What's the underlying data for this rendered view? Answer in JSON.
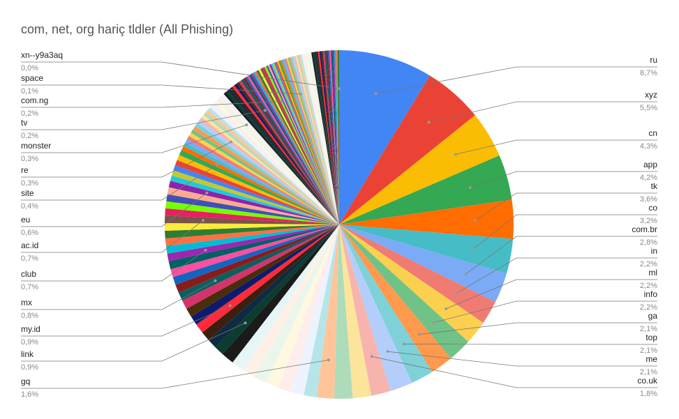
{
  "chart_data": {
    "type": "pie",
    "title": "com, net, org hariç tldler (All Phishing)",
    "categories": [
      "ru",
      "xyz",
      "cn",
      "app",
      "tk",
      "co",
      "com.br",
      "in",
      "ml",
      "info",
      "ga",
      "top",
      "me",
      "co.uk",
      null,
      null,
      "gq",
      null,
      null,
      null,
      null,
      null,
      null,
      null,
      null,
      "link",
      null,
      null,
      "my.id",
      null,
      null,
      null,
      "mx",
      null,
      null,
      null,
      null,
      "club",
      null,
      null,
      null,
      null,
      "ac.id",
      null,
      null,
      null,
      null,
      "eu",
      null,
      null,
      null,
      null,
      null,
      null,
      "site",
      null,
      null,
      null,
      null,
      null,
      null,
      null,
      null,
      "re",
      null,
      null,
      null,
      null,
      null,
      null,
      null,
      null,
      "monster",
      null,
      null,
      null,
      null,
      null,
      null,
      null,
      null,
      null,
      null,
      "tv",
      null,
      null,
      null,
      null,
      null,
      null,
      null,
      null,
      null,
      null,
      "com.ng",
      null,
      null,
      null,
      null,
      null,
      null,
      null,
      null,
      null,
      null,
      null,
      null,
      null,
      null,
      null,
      "space",
      null,
      null,
      null,
      null,
      null,
      null,
      null,
      null,
      null,
      null,
      null,
      null,
      null,
      null,
      null,
      null,
      null,
      null,
      null,
      null,
      null,
      null,
      null,
      null,
      null,
      null,
      null,
      null,
      null,
      null,
      "xn--y9a3aq"
    ],
    "values": [
      8.7,
      5.5,
      4.3,
      4.2,
      3.6,
      3.2,
      2.8,
      2.2,
      2.2,
      2.2,
      2.1,
      2.1,
      2.1,
      1.8,
      1.7,
      1.7,
      1.6,
      1.2,
      1.2,
      1.2,
      1.2,
      1.2,
      1.2,
      1.2,
      1.2,
      0.9,
      0.9,
      0.9,
      0.9,
      0.85,
      0.85,
      0.85,
      0.8,
      0.75,
      0.75,
      0.75,
      0.75,
      0.7,
      0.7,
      0.7,
      0.7,
      0.7,
      0.7,
      0.65,
      0.65,
      0.65,
      0.65,
      0.6,
      0.5,
      0.5,
      0.5,
      0.5,
      0.5,
      0.5,
      0.4,
      0.35,
      0.35,
      0.35,
      0.35,
      0.35,
      0.35,
      0.35,
      0.35,
      0.3,
      0.3,
      0.3,
      0.3,
      0.3,
      0.3,
      0.3,
      0.3,
      0.3,
      0.3,
      0.25,
      0.25,
      0.25,
      0.25,
      0.25,
      0.25,
      0.25,
      0.25,
      0.25,
      0.25,
      0.2,
      0.2,
      0.2,
      0.2,
      0.2,
      0.2,
      0.2,
      0.2,
      0.2,
      0.2,
      0.2,
      0.2,
      0.15,
      0.15,
      0.15,
      0.15,
      0.15,
      0.15,
      0.15,
      0.15,
      0.15,
      0.15,
      0.15,
      0.15,
      0.15,
      0.15,
      0.15,
      0.1,
      0.15,
      0.15,
      0.15,
      0.15,
      0.15,
      0.15,
      0.15,
      0.15,
      0.15,
      0.15,
      0.15,
      0.15,
      0.15,
      0.15,
      0.15,
      0.15,
      0.15,
      0.15,
      0.15,
      0.15,
      0.15,
      0.15,
      0.15,
      0.15,
      0.15,
      0.15,
      0.15,
      0.15,
      0.15,
      0.15,
      0.0
    ],
    "value_labels": [
      "8,7%",
      "5,5%",
      "4,3%",
      "4,2%",
      "3,6%",
      "3,2%",
      "2,8%",
      "2,2%",
      "2,2%",
      "2,2%",
      "2,1%",
      "2,1%",
      "2,1%",
      "1,8%",
      null,
      null,
      "1,6%",
      null,
      null,
      null,
      null,
      null,
      null,
      null,
      null,
      "0,9%",
      null,
      null,
      "0,9%",
      null,
      null,
      null,
      "0,8%",
      null,
      null,
      null,
      null,
      "0,7%",
      null,
      null,
      null,
      null,
      "0,7%",
      null,
      null,
      null,
      null,
      "0,6%",
      null,
      null,
      null,
      null,
      null,
      null,
      "0,4%",
      null,
      null,
      null,
      null,
      null,
      null,
      null,
      null,
      "0,3%",
      null,
      null,
      null,
      null,
      null,
      null,
      null,
      null,
      "0,3%",
      null,
      null,
      null,
      null,
      null,
      null,
      null,
      null,
      null,
      null,
      "0,2%",
      null,
      null,
      null,
      null,
      null,
      null,
      null,
      null,
      null,
      null,
      "0,2%",
      null,
      null,
      null,
      null,
      null,
      null,
      null,
      null,
      null,
      null,
      null,
      null,
      null,
      null,
      null,
      "0,1%",
      null,
      null,
      null,
      null,
      null,
      null,
      null,
      null,
      null,
      null,
      null,
      null,
      null,
      null,
      null,
      null,
      null,
      null,
      null,
      null,
      null,
      null,
      null,
      null,
      null,
      null,
      null,
      null,
      null,
      null,
      "0,0%"
    ],
    "colors": [
      "#4285f4",
      "#ea4335",
      "#fbbc04",
      "#34a853",
      "#ff6d01",
      "#46bdc6",
      "#7baaf7",
      "#f07b72",
      "#fcd04f",
      "#71c287",
      "#ff994d",
      "#7ed1d7",
      "#b3cefb",
      "#f7b4ae",
      "#fde49b",
      "#aedcba",
      "#ffc599",
      "#b5e5e8",
      "#ecf3fe",
      "#fdedec",
      "#fff8e1",
      "#eaf6ec",
      "#fff0e6",
      "#e6f6f7",
      "#1b1b1b",
      "#0b3d2e",
      "#102a43",
      "#3b1f0f",
      "#ff2a3a",
      "#0d1b6e",
      "#4a2d0a",
      "#d6336c",
      "#0f5e5e",
      "#8b1a1a",
      "#1565c0",
      "#ff4fa0",
      "#006064",
      "#9c27b0",
      "#00bcd4",
      "#ff7043",
      "#2e7d32",
      "#ffeb3b",
      "#795548",
      "#e91e63",
      "#76ff03",
      "#3f51b5",
      "#ffab91",
      "#8e24aa",
      "#26c6da",
      "#c0ca33"
    ]
  }
}
